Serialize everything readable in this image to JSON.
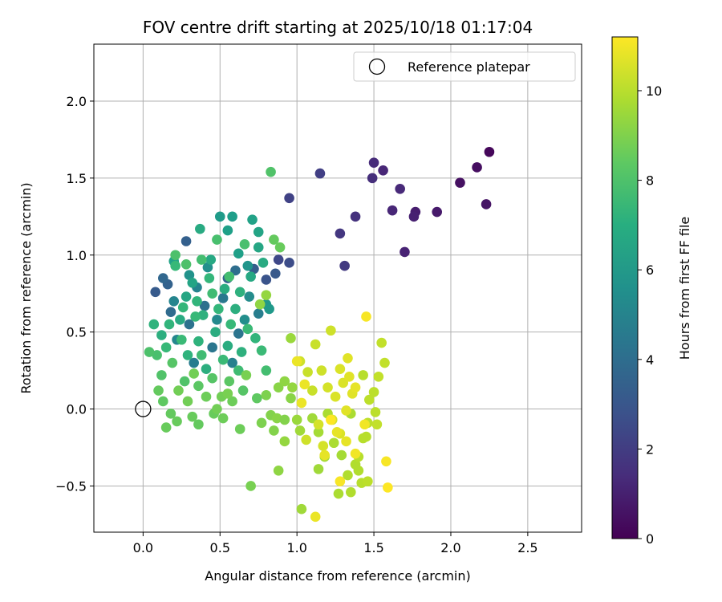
{
  "chart_data": {
    "type": "scatter",
    "title": "FOV centre drift starting at 2025/10/18 01:17:04",
    "xlabel": "Angular distance from reference (arcmin)",
    "ylabel": "Rotation from reference (arcmin)",
    "xlim": [
      -0.32,
      2.85
    ],
    "ylim": [
      -0.8,
      2.37
    ],
    "xticks": [
      0.0,
      0.5,
      1.0,
      1.5,
      2.0,
      2.5
    ],
    "xtick_labels": [
      "0.0",
      "0.5",
      "1.0",
      "1.5",
      "2.0",
      "2.5"
    ],
    "yticks": [
      -0.5,
      0.0,
      0.5,
      1.0,
      1.5,
      2.0
    ],
    "ytick_labels": [
      "−0.5",
      "0.0",
      "0.5",
      "1.0",
      "1.5",
      "2.0"
    ],
    "grid": true,
    "legend": {
      "position": "top-right",
      "entries": [
        "Reference platepar"
      ]
    },
    "reference_point": {
      "x": 0.0,
      "y": 0.0,
      "label": "Reference platepar"
    },
    "colorbar": {
      "label": "Hours from first FF file",
      "min": 0,
      "max": 11.2,
      "ticks": [
        0,
        2,
        4,
        6,
        8,
        10
      ],
      "tick_labels": [
        "0",
        "2",
        "4",
        "6",
        "8",
        "10"
      ],
      "colormap": "viridis"
    },
    "points": [
      {
        "x": 2.25,
        "y": 1.67,
        "t": 0.2
      },
      {
        "x": 2.17,
        "y": 1.57,
        "t": 0.4
      },
      {
        "x": 2.06,
        "y": 1.47,
        "t": 0.5
      },
      {
        "x": 2.23,
        "y": 1.33,
        "t": 0.6
      },
      {
        "x": 1.91,
        "y": 1.28,
        "t": 0.8
      },
      {
        "x": 1.77,
        "y": 1.28,
        "t": 0.9
      },
      {
        "x": 1.76,
        "y": 1.25,
        "t": 1.0
      },
      {
        "x": 1.7,
        "y": 1.02,
        "t": 1.1
      },
      {
        "x": 1.62,
        "y": 1.29,
        "t": 1.2
      },
      {
        "x": 1.67,
        "y": 1.43,
        "t": 1.3
      },
      {
        "x": 1.56,
        "y": 1.55,
        "t": 1.2
      },
      {
        "x": 1.5,
        "y": 1.6,
        "t": 1.4
      },
      {
        "x": 1.49,
        "y": 1.5,
        "t": 1.5
      },
      {
        "x": 1.38,
        "y": 1.25,
        "t": 1.6
      },
      {
        "x": 1.28,
        "y": 1.14,
        "t": 1.8
      },
      {
        "x": 1.31,
        "y": 0.93,
        "t": 1.9
      },
      {
        "x": 1.15,
        "y": 1.53,
        "t": 2.1
      },
      {
        "x": 0.95,
        "y": 1.37,
        "t": 2.2
      },
      {
        "x": 0.95,
        "y": 0.95,
        "t": 2.6
      },
      {
        "x": 0.88,
        "y": 0.97,
        "t": 2.4
      },
      {
        "x": 0.8,
        "y": 0.84,
        "t": 2.9
      },
      {
        "x": 0.86,
        "y": 0.88,
        "t": 3.1
      },
      {
        "x": 0.72,
        "y": 0.91,
        "t": 3.3
      },
      {
        "x": 0.28,
        "y": 1.09,
        "t": 3.4
      },
      {
        "x": 0.16,
        "y": 0.81,
        "t": 3.5
      },
      {
        "x": 0.13,
        "y": 0.85,
        "t": 3.7
      },
      {
        "x": 0.08,
        "y": 0.76,
        "t": 3.2
      },
      {
        "x": 0.18,
        "y": 0.63,
        "t": 3.9
      },
      {
        "x": 0.55,
        "y": 0.85,
        "t": 3.6
      },
      {
        "x": 0.6,
        "y": 0.9,
        "t": 4.0
      },
      {
        "x": 0.3,
        "y": 0.55,
        "t": 4.2
      },
      {
        "x": 0.45,
        "y": 0.4,
        "t": 4.4
      },
      {
        "x": 0.4,
        "y": 0.67,
        "t": 4.1
      },
      {
        "x": 0.52,
        "y": 0.72,
        "t": 4.5
      },
      {
        "x": 0.62,
        "y": 0.49,
        "t": 4.3
      },
      {
        "x": 0.75,
        "y": 0.62,
        "t": 4.8
      },
      {
        "x": 0.33,
        "y": 0.3,
        "t": 4.7
      },
      {
        "x": 0.58,
        "y": 0.3,
        "t": 4.9
      },
      {
        "x": 0.35,
        "y": 0.79,
        "t": 5.0
      },
      {
        "x": 0.2,
        "y": 0.7,
        "t": 5.1
      },
      {
        "x": 0.22,
        "y": 0.45,
        "t": 5.2
      },
      {
        "x": 0.48,
        "y": 0.58,
        "t": 5.3
      },
      {
        "x": 0.69,
        "y": 0.73,
        "t": 5.4
      },
      {
        "x": 0.66,
        "y": 0.58,
        "t": 5.5
      },
      {
        "x": 0.42,
        "y": 0.92,
        "t": 5.6
      },
      {
        "x": 0.3,
        "y": 0.87,
        "t": 5.7
      },
      {
        "x": 0.68,
        "y": 0.93,
        "t": 5.8
      },
      {
        "x": 0.8,
        "y": 0.68,
        "t": 5.9
      },
      {
        "x": 0.82,
        "y": 0.65,
        "t": 6.0
      },
      {
        "x": 0.5,
        "y": 1.25,
        "t": 6.1
      },
      {
        "x": 0.58,
        "y": 1.25,
        "t": 6.2
      },
      {
        "x": 0.55,
        "y": 1.16,
        "t": 6.3
      },
      {
        "x": 0.71,
        "y": 1.23,
        "t": 6.4
      },
      {
        "x": 0.75,
        "y": 1.15,
        "t": 6.5
      },
      {
        "x": 0.62,
        "y": 1.01,
        "t": 6.3
      },
      {
        "x": 0.75,
        "y": 1.05,
        "t": 6.6
      },
      {
        "x": 0.2,
        "y": 0.96,
        "t": 6.4
      },
      {
        "x": 0.37,
        "y": 1.17,
        "t": 6.8
      },
      {
        "x": 0.44,
        "y": 0.97,
        "t": 6.7
      },
      {
        "x": 0.32,
        "y": 0.82,
        "t": 6.5
      },
      {
        "x": 0.28,
        "y": 0.73,
        "t": 6.6
      },
      {
        "x": 0.53,
        "y": 0.78,
        "t": 6.9
      },
      {
        "x": 0.7,
        "y": 0.86,
        "t": 6.7
      },
      {
        "x": 0.78,
        "y": 0.95,
        "t": 6.8
      },
      {
        "x": 0.6,
        "y": 0.65,
        "t": 7.0
      },
      {
        "x": 0.47,
        "y": 0.5,
        "t": 6.9
      },
      {
        "x": 0.39,
        "y": 0.61,
        "t": 7.1
      },
      {
        "x": 0.24,
        "y": 0.58,
        "t": 6.8
      },
      {
        "x": 0.12,
        "y": 0.48,
        "t": 7.0
      },
      {
        "x": 0.36,
        "y": 0.44,
        "t": 7.2
      },
      {
        "x": 0.55,
        "y": 0.41,
        "t": 6.9
      },
      {
        "x": 0.64,
        "y": 0.37,
        "t": 7.1
      },
      {
        "x": 0.73,
        "y": 0.46,
        "t": 7.3
      },
      {
        "x": 0.41,
        "y": 0.26,
        "t": 7.0
      },
      {
        "x": 0.29,
        "y": 0.35,
        "t": 7.2
      },
      {
        "x": 0.17,
        "y": 0.55,
        "t": 7.3
      },
      {
        "x": 0.07,
        "y": 0.55,
        "t": 7.2
      },
      {
        "x": 0.63,
        "y": 0.76,
        "t": 7.1
      },
      {
        "x": 0.49,
        "y": 0.65,
        "t": 7.4
      },
      {
        "x": 0.35,
        "y": 0.7,
        "t": 7.3
      },
      {
        "x": 0.43,
        "y": 0.85,
        "t": 7.4
      },
      {
        "x": 0.21,
        "y": 0.93,
        "t": 7.5
      },
      {
        "x": 0.34,
        "y": 0.6,
        "t": 7.5
      },
      {
        "x": 0.26,
        "y": 0.66,
        "t": 7.4
      },
      {
        "x": 0.57,
        "y": 0.55,
        "t": 7.5
      },
      {
        "x": 0.68,
        "y": 0.52,
        "t": 7.6
      },
      {
        "x": 0.25,
        "y": 0.45,
        "t": 7.6
      },
      {
        "x": 0.15,
        "y": 0.4,
        "t": 7.5
      },
      {
        "x": 0.52,
        "y": 0.32,
        "t": 7.6
      },
      {
        "x": 0.38,
        "y": 0.35,
        "t": 7.7
      },
      {
        "x": 0.62,
        "y": 0.25,
        "t": 7.7
      },
      {
        "x": 0.77,
        "y": 0.38,
        "t": 7.6
      },
      {
        "x": 0.8,
        "y": 0.25,
        "t": 7.8
      },
      {
        "x": 0.45,
        "y": 0.75,
        "t": 7.7
      },
      {
        "x": 0.56,
        "y": 0.86,
        "t": 7.8
      },
      {
        "x": 0.66,
        "y": 1.07,
        "t": 7.9
      },
      {
        "x": 0.48,
        "y": 1.1,
        "t": 7.9
      },
      {
        "x": 0.38,
        "y": 0.97,
        "t": 7.8
      },
      {
        "x": 0.28,
        "y": 0.94,
        "t": 8.0
      },
      {
        "x": 0.21,
        "y": 1.0,
        "t": 8.0
      },
      {
        "x": 0.09,
        "y": 0.35,
        "t": 7.9
      },
      {
        "x": 0.04,
        "y": 0.37,
        "t": 8.0
      },
      {
        "x": 0.12,
        "y": 0.22,
        "t": 8.1
      },
      {
        "x": 0.19,
        "y": 0.3,
        "t": 8.2
      },
      {
        "x": 0.27,
        "y": 0.18,
        "t": 8.1
      },
      {
        "x": 0.36,
        "y": 0.15,
        "t": 8.3
      },
      {
        "x": 0.45,
        "y": 0.2,
        "t": 8.2
      },
      {
        "x": 0.56,
        "y": 0.18,
        "t": 8.3
      },
      {
        "x": 0.65,
        "y": 0.12,
        "t": 8.2
      },
      {
        "x": 0.74,
        "y": 0.07,
        "t": 8.4
      },
      {
        "x": 0.83,
        "y": 1.54,
        "t": 8.1
      },
      {
        "x": 0.85,
        "y": 1.1,
        "t": 8.5
      },
      {
        "x": 0.89,
        "y": 1.05,
        "t": 8.6
      },
      {
        "x": 0.1,
        "y": 0.12,
        "t": 8.5
      },
      {
        "x": 0.13,
        "y": 0.05,
        "t": 8.4
      },
      {
        "x": 0.18,
        "y": -0.03,
        "t": 8.5
      },
      {
        "x": 0.22,
        "y": -0.08,
        "t": 8.6
      },
      {
        "x": 0.32,
        "y": -0.05,
        "t": 8.6
      },
      {
        "x": 0.36,
        "y": -0.1,
        "t": 8.5
      },
      {
        "x": 0.46,
        "y": -0.03,
        "t": 8.6
      },
      {
        "x": 0.52,
        "y": -0.06,
        "t": 8.7
      },
      {
        "x": 0.58,
        "y": 0.05,
        "t": 8.7
      },
      {
        "x": 0.63,
        "y": -0.13,
        "t": 8.7
      },
      {
        "x": 0.15,
        "y": -0.12,
        "t": 8.6
      },
      {
        "x": 0.41,
        "y": 0.08,
        "t": 8.7
      },
      {
        "x": 0.51,
        "y": 0.08,
        "t": 8.8
      },
      {
        "x": 0.29,
        "y": 0.05,
        "t": 8.8
      },
      {
        "x": 0.23,
        "y": 0.12,
        "t": 8.8
      },
      {
        "x": 0.48,
        "y": 0.0,
        "t": 8.8
      },
      {
        "x": 0.55,
        "y": 0.1,
        "t": 8.9
      },
      {
        "x": 0.33,
        "y": 0.23,
        "t": 8.8
      },
      {
        "x": 0.67,
        "y": 0.22,
        "t": 8.9
      },
      {
        "x": 0.7,
        "y": -0.5,
        "t": 8.9
      },
      {
        "x": 0.77,
        "y": -0.09,
        "t": 9.0
      },
      {
        "x": 0.8,
        "y": 0.09,
        "t": 9.0
      },
      {
        "x": 0.83,
        "y": -0.04,
        "t": 9.1
      },
      {
        "x": 0.85,
        "y": -0.14,
        "t": 9.1
      },
      {
        "x": 0.87,
        "y": -0.06,
        "t": 9.2
      },
      {
        "x": 0.92,
        "y": -0.07,
        "t": 9.1
      },
      {
        "x": 0.88,
        "y": 0.14,
        "t": 9.2
      },
      {
        "x": 0.92,
        "y": 0.18,
        "t": 9.3
      },
      {
        "x": 0.96,
        "y": 0.07,
        "t": 9.2
      },
      {
        "x": 0.88,
        "y": -0.4,
        "t": 9.3
      },
      {
        "x": 0.92,
        "y": -0.21,
        "t": 9.4
      },
      {
        "x": 0.76,
        "y": 0.68,
        "t": 9.3
      },
      {
        "x": 0.8,
        "y": 0.74,
        "t": 9.4
      },
      {
        "x": 0.96,
        "y": 0.46,
        "t": 9.5
      },
      {
        "x": 0.97,
        "y": 0.14,
        "t": 9.4
      },
      {
        "x": 1.0,
        "y": -0.07,
        "t": 9.5
      },
      {
        "x": 1.02,
        "y": -0.14,
        "t": 9.6
      },
      {
        "x": 1.03,
        "y": -0.65,
        "t": 9.6
      },
      {
        "x": 1.1,
        "y": -0.06,
        "t": 9.6
      },
      {
        "x": 1.14,
        "y": -0.15,
        "t": 9.7
      },
      {
        "x": 1.18,
        "y": -0.31,
        "t": 9.7
      },
      {
        "x": 1.14,
        "y": -0.39,
        "t": 9.6
      },
      {
        "x": 1.2,
        "y": -0.03,
        "t": 9.8
      },
      {
        "x": 1.24,
        "y": -0.22,
        "t": 9.8
      },
      {
        "x": 1.27,
        "y": -0.55,
        "t": 9.8
      },
      {
        "x": 1.29,
        "y": -0.3,
        "t": 9.7
      },
      {
        "x": 1.33,
        "y": -0.43,
        "t": 9.9
      },
      {
        "x": 1.35,
        "y": -0.54,
        "t": 9.9
      },
      {
        "x": 1.35,
        "y": -0.03,
        "t": 9.8
      },
      {
        "x": 1.38,
        "y": -0.36,
        "t": 9.9
      },
      {
        "x": 1.43,
        "y": -0.19,
        "t": 10.0
      },
      {
        "x": 1.4,
        "y": -0.31,
        "t": 10.0
      },
      {
        "x": 1.4,
        "y": -0.4,
        "t": 9.9
      },
      {
        "x": 1.42,
        "y": -0.48,
        "t": 10.0
      },
      {
        "x": 1.45,
        "y": -0.18,
        "t": 10.0
      },
      {
        "x": 1.43,
        "y": 0.22,
        "t": 10.0
      },
      {
        "x": 1.46,
        "y": -0.09,
        "t": 10.1
      },
      {
        "x": 1.47,
        "y": 0.06,
        "t": 10.1
      },
      {
        "x": 1.5,
        "y": 0.11,
        "t": 10.1
      },
      {
        "x": 1.51,
        "y": -0.02,
        "t": 10.1
      },
      {
        "x": 1.53,
        "y": 0.21,
        "t": 10.2
      },
      {
        "x": 1.55,
        "y": 0.43,
        "t": 10.2
      },
      {
        "x": 1.57,
        "y": 0.3,
        "t": 10.2
      },
      {
        "x": 1.52,
        "y": -0.1,
        "t": 10.2
      },
      {
        "x": 1.46,
        "y": -0.47,
        "t": 10.1
      },
      {
        "x": 1.12,
        "y": 0.42,
        "t": 10.3
      },
      {
        "x": 1.07,
        "y": 0.24,
        "t": 10.3
      },
      {
        "x": 1.1,
        "y": 0.12,
        "t": 10.3
      },
      {
        "x": 1.16,
        "y": 0.25,
        "t": 10.4
      },
      {
        "x": 1.22,
        "y": 0.51,
        "t": 10.4
      },
      {
        "x": 1.02,
        "y": 0.31,
        "t": 10.4
      },
      {
        "x": 1.06,
        "y": -0.2,
        "t": 10.4
      },
      {
        "x": 1.14,
        "y": -0.1,
        "t": 10.5
      },
      {
        "x": 1.17,
        "y": -0.24,
        "t": 10.5
      },
      {
        "x": 1.2,
        "y": 0.14,
        "t": 10.5
      },
      {
        "x": 1.23,
        "y": -0.07,
        "t": 10.5
      },
      {
        "x": 1.25,
        "y": 0.08,
        "t": 10.6
      },
      {
        "x": 1.28,
        "y": -0.16,
        "t": 10.6
      },
      {
        "x": 1.28,
        "y": 0.26,
        "t": 10.6
      },
      {
        "x": 1.3,
        "y": 0.17,
        "t": 10.6
      },
      {
        "x": 1.32,
        "y": -0.01,
        "t": 10.7
      },
      {
        "x": 1.33,
        "y": 0.33,
        "t": 10.7
      },
      {
        "x": 1.34,
        "y": 0.21,
        "t": 10.7
      },
      {
        "x": 1.36,
        "y": 0.1,
        "t": 10.7
      },
      {
        "x": 1.32,
        "y": -0.21,
        "t": 10.8
      },
      {
        "x": 1.38,
        "y": 0.14,
        "t": 10.8
      },
      {
        "x": 1.26,
        "y": -0.15,
        "t": 10.8
      },
      {
        "x": 1.18,
        "y": -0.3,
        "t": 10.8
      },
      {
        "x": 1.12,
        "y": -0.7,
        "t": 10.9
      },
      {
        "x": 1.03,
        "y": 0.04,
        "t": 10.9
      },
      {
        "x": 1.0,
        "y": 0.31,
        "t": 10.9
      },
      {
        "x": 1.05,
        "y": 0.16,
        "t": 10.9
      },
      {
        "x": 1.38,
        "y": -0.29,
        "t": 11.0
      },
      {
        "x": 1.44,
        "y": -0.1,
        "t": 11.0
      },
      {
        "x": 1.45,
        "y": 0.6,
        "t": 11.1
      },
      {
        "x": 1.58,
        "y": -0.34,
        "t": 11.1
      },
      {
        "x": 1.59,
        "y": -0.51,
        "t": 11.2
      },
      {
        "x": 1.28,
        "y": -0.47,
        "t": 11.1
      },
      {
        "x": 1.22,
        "y": -0.07,
        "t": 11.2
      }
    ]
  }
}
